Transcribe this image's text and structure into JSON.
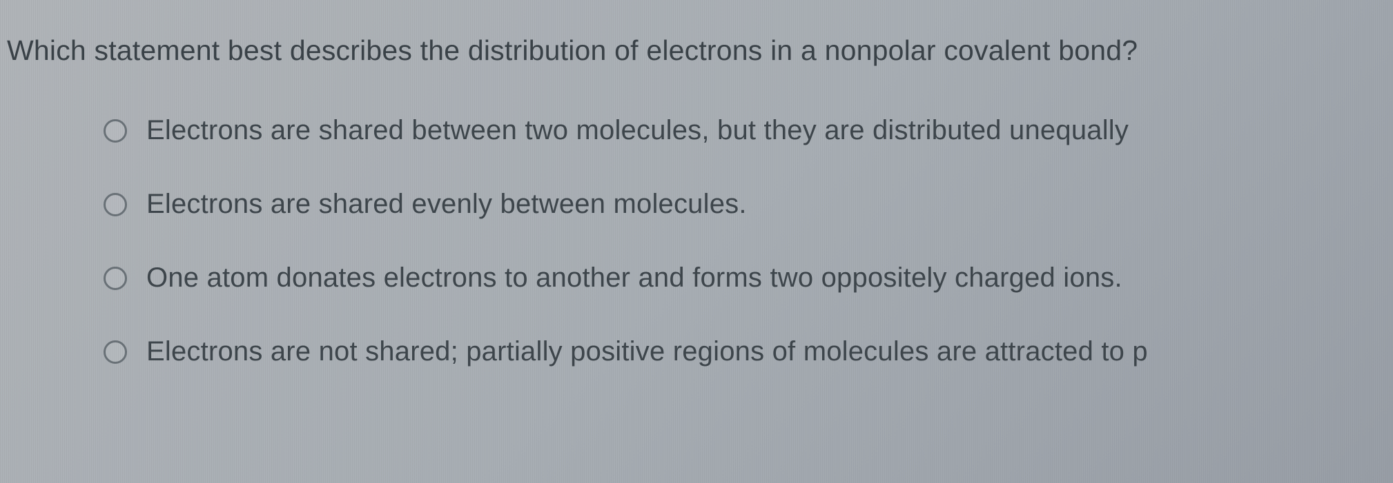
{
  "question": {
    "prompt": "Which statement best describes the distribution of electrons in a nonpolar covalent bond?",
    "options": [
      {
        "label": "Electrons are shared between two molecules, but they are distributed unequally"
      },
      {
        "label": "Electrons are shared evenly between molecules."
      },
      {
        "label": "One atom donates electrons to another and forms two oppositely charged ions."
      },
      {
        "label": "Electrons are not shared; partially positive regions of molecules are attracted to p"
      }
    ]
  },
  "colors": {
    "text": "#3a4248",
    "radio_border": "#6a7278",
    "background_start": "#b0b4b8",
    "background_end": "#989ea6"
  },
  "typography": {
    "question_fontsize": 41,
    "option_fontsize": 40,
    "font_family": "Segoe UI"
  }
}
